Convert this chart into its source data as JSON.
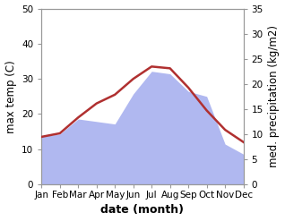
{
  "months": [
    "Jan",
    "Feb",
    "Mar",
    "Apr",
    "May",
    "Jun",
    "Jul",
    "Aug",
    "Sep",
    "Oct",
    "Nov",
    "Dec"
  ],
  "max_temp": [
    13.5,
    14.5,
    19.0,
    23.0,
    25.5,
    30.0,
    33.5,
    33.0,
    27.5,
    21.0,
    15.5,
    12.0
  ],
  "precipitation": [
    9.5,
    10.0,
    13.0,
    12.5,
    12.0,
    18.0,
    22.5,
    22.0,
    18.5,
    17.5,
    8.0,
    6.0
  ],
  "temp_color": "#b03030",
  "precip_fill_color": "#b0b8f0",
  "temp_ylim": [
    0,
    50
  ],
  "precip_ylim": [
    0,
    35
  ],
  "xlabel": "date (month)",
  "ylabel_left": "max temp (C)",
  "ylabel_right": "med. precipitation (kg/m2)",
  "temp_yticks": [
    0,
    10,
    20,
    30,
    40,
    50
  ],
  "precip_yticks": [
    0,
    5,
    10,
    15,
    20,
    25,
    30,
    35
  ],
  "bg_color": "#ffffff",
  "xlabel_fontsize": 9,
  "ylabel_fontsize": 8.5,
  "tick_fontsize": 7.5
}
